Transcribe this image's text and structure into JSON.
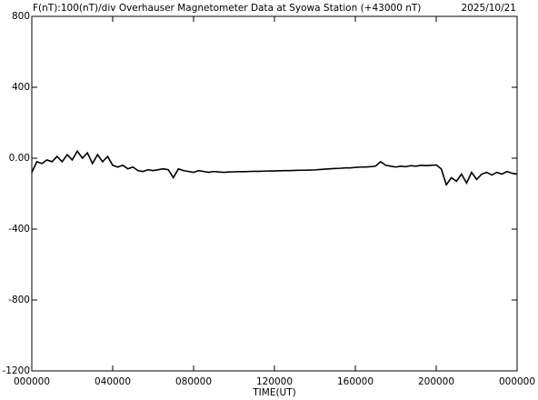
{
  "chart_data": {
    "type": "line",
    "title": "F(nT):100(nT)/div  Overhauser Magnetometer Data at Syowa Station (+43000 nT)",
    "date": "2025/10/21",
    "x_label": "TIME(UT)",
    "color": "#000000",
    "xlim": [
      0,
      24
    ],
    "xticks": [
      {
        "value": 0,
        "label": "000000"
      },
      {
        "value": 4,
        "label": "040000"
      },
      {
        "value": 8,
        "label": "080000"
      },
      {
        "value": 12,
        "label": "120000"
      },
      {
        "value": 16,
        "label": "160000"
      },
      {
        "value": 20,
        "label": "200000"
      },
      {
        "value": 24,
        "label": "000000"
      }
    ],
    "ylim": [
      -1200,
      800
    ],
    "yticks": [
      -1200,
      -800,
      -400,
      {
        "value": 0,
        "label": "0.00"
      },
      400,
      800
    ],
    "x": [
      0,
      0.25,
      0.5,
      0.75,
      1,
      1.25,
      1.5,
      1.75,
      2,
      2.25,
      2.5,
      2.75,
      3,
      3.25,
      3.5,
      3.75,
      4,
      4.25,
      4.5,
      4.75,
      5,
      5.25,
      5.5,
      5.75,
      6,
      6.25,
      6.5,
      6.75,
      7,
      7.25,
      7.5,
      7.75,
      8,
      8.25,
      8.5,
      8.75,
      9,
      9.25,
      9.5,
      9.75,
      10,
      10.25,
      10.5,
      10.75,
      11,
      11.25,
      11.5,
      11.75,
      12,
      12.25,
      12.5,
      12.75,
      13,
      13.25,
      13.5,
      13.75,
      14,
      14.25,
      14.5,
      14.75,
      15,
      15.25,
      15.5,
      15.75,
      16,
      16.25,
      16.5,
      16.75,
      17,
      17.25,
      17.5,
      17.75,
      18,
      18.25,
      18.5,
      18.75,
      19,
      19.25,
      19.5,
      19.75,
      20,
      20.25,
      20.5,
      20.75,
      21,
      21.25,
      21.5,
      21.75,
      22,
      22.25,
      22.5,
      22.75,
      23,
      23.25,
      23.5,
      23.75,
      24
    ],
    "values": [
      -80,
      -20,
      -30,
      -10,
      -20,
      10,
      -20,
      20,
      -10,
      40,
      0,
      30,
      -30,
      20,
      -20,
      10,
      -40,
      -50,
      -40,
      -60,
      -50,
      -70,
      -75,
      -65,
      -70,
      -65,
      -60,
      -65,
      -110,
      -60,
      -70,
      -75,
      -80,
      -70,
      -75,
      -80,
      -75,
      -78,
      -80,
      -78,
      -77,
      -76,
      -76,
      -75,
      -74,
      -74,
      -73,
      -72,
      -72,
      -71,
      -70,
      -70,
      -69,
      -68,
      -68,
      -67,
      -66,
      -64,
      -62,
      -60,
      -58,
      -57,
      -55,
      -55,
      -52,
      -50,
      -50,
      -48,
      -45,
      -20,
      -40,
      -45,
      -50,
      -45,
      -48,
      -42,
      -45,
      -40,
      -42,
      -40,
      -38,
      -60,
      -150,
      -110,
      -130,
      -90,
      -140,
      -80,
      -120,
      -90,
      -80,
      -95,
      -80,
      -90,
      -75,
      -85,
      -90
    ]
  }
}
